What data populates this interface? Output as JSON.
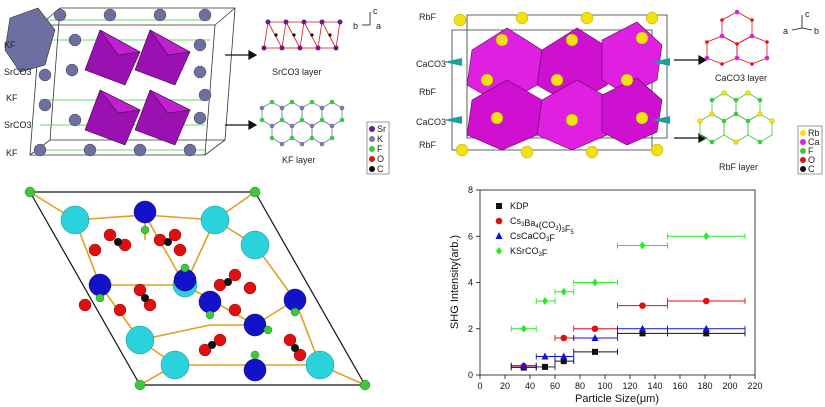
{
  "panel_a": {
    "layer_labels": [
      "KF",
      "SrCO3",
      "KF",
      "SrCO3",
      "KF"
    ],
    "caption_top": "SrCO3 layer",
    "caption_bottom": "KF layer",
    "axes_labels": [
      "c",
      "b",
      "a"
    ],
    "legend": [
      {
        "label": "Sr",
        "color": "#6a1b8a"
      },
      {
        "label": "K",
        "color": "#7a7aa8"
      },
      {
        "label": "F",
        "color": "#3cc93c"
      },
      {
        "label": "O",
        "color": "#e01010"
      },
      {
        "label": "C",
        "color": "#111111"
      }
    ]
  },
  "panel_b": {
    "layer_labels": [
      "RbF",
      "CaCO3",
      "RbF",
      "CaCO3",
      "RbF"
    ],
    "caption_top": "CaCO3 layer",
    "caption_bottom": "RbF layer",
    "axes_labels": [
      "c",
      "a",
      "b"
    ],
    "legend": [
      {
        "label": "Rb",
        "color": "#f2e10a"
      },
      {
        "label": "Ca",
        "color": "#e020e0"
      },
      {
        "label": "F",
        "color": "#3cc93c"
      },
      {
        "label": "O",
        "color": "#e01010"
      },
      {
        "label": "C",
        "color": "#111111"
      }
    ]
  },
  "chart_data": {
    "type": "scatter",
    "xlabel": "Particle Size(μm)",
    "ylabel": "SHG Intensity(arb.)",
    "xlim": [
      0,
      220
    ],
    "ylim": [
      0,
      8
    ],
    "xticks": [
      0,
      20,
      40,
      60,
      80,
      100,
      120,
      140,
      160,
      180,
      200,
      220
    ],
    "yticks": [
      0,
      2,
      4,
      6,
      8
    ],
    "legend_position": "top-left",
    "series": [
      {
        "name": "KDP",
        "color": "#111111",
        "marker": "square",
        "points": [
          {
            "x": 35,
            "y": 0.32,
            "xmin": 25,
            "xmax": 45
          },
          {
            "x": 52,
            "y": 0.35,
            "xmin": 45,
            "xmax": 60
          },
          {
            "x": 67,
            "y": 0.6,
            "xmin": 60,
            "xmax": 75
          },
          {
            "x": 92,
            "y": 1.0,
            "xmin": 75,
            "xmax": 110
          },
          {
            "x": 130,
            "y": 1.8,
            "xmin": 110,
            "xmax": 150
          },
          {
            "x": 181,
            "y": 1.8,
            "xmin": 150,
            "xmax": 212
          }
        ]
      },
      {
        "name": "Cs3Ba4(CO3)3F5",
        "color": "#e01010",
        "marker": "circle",
        "points": [
          {
            "x": 35,
            "y": 0.38,
            "xmin": 25,
            "xmax": 45
          },
          {
            "x": 67,
            "y": 1.6,
            "xmin": 60,
            "xmax": 75
          },
          {
            "x": 92,
            "y": 2.0,
            "xmin": 75,
            "xmax": 110
          },
          {
            "x": 130,
            "y": 3.0,
            "xmin": 110,
            "xmax": 150
          },
          {
            "x": 181,
            "y": 3.2,
            "xmin": 150,
            "xmax": 212
          }
        ]
      },
      {
        "name": "CsCaCO3F",
        "color": "#1010e0",
        "marker": "triangle",
        "points": [
          {
            "x": 35,
            "y": 0.4,
            "xmin": 25,
            "xmax": 45
          },
          {
            "x": 52,
            "y": 0.8,
            "xmin": 45,
            "xmax": 60
          },
          {
            "x": 67,
            "y": 0.8,
            "xmin": 60,
            "xmax": 75
          },
          {
            "x": 92,
            "y": 1.6,
            "xmin": 75,
            "xmax": 110
          },
          {
            "x": 130,
            "y": 2.0,
            "xmin": 110,
            "xmax": 150
          },
          {
            "x": 181,
            "y": 2.0,
            "xmin": 150,
            "xmax": 212
          }
        ]
      },
      {
        "name": "KSrCO3F",
        "color": "#22ee22",
        "marker": "diamond",
        "points": [
          {
            "x": 35,
            "y": 2.0,
            "xmin": 25,
            "xmax": 45
          },
          {
            "x": 52,
            "y": 3.2,
            "xmin": 45,
            "xmax": 60
          },
          {
            "x": 67,
            "y": 3.6,
            "xmin": 60,
            "xmax": 75
          },
          {
            "x": 92,
            "y": 4.0,
            "xmin": 75,
            "xmax": 110
          },
          {
            "x": 130,
            "y": 5.6,
            "xmin": 110,
            "xmax": 150
          },
          {
            "x": 181,
            "y": 6.0,
            "xmin": 150,
            "xmax": 212
          }
        ]
      }
    ]
  }
}
